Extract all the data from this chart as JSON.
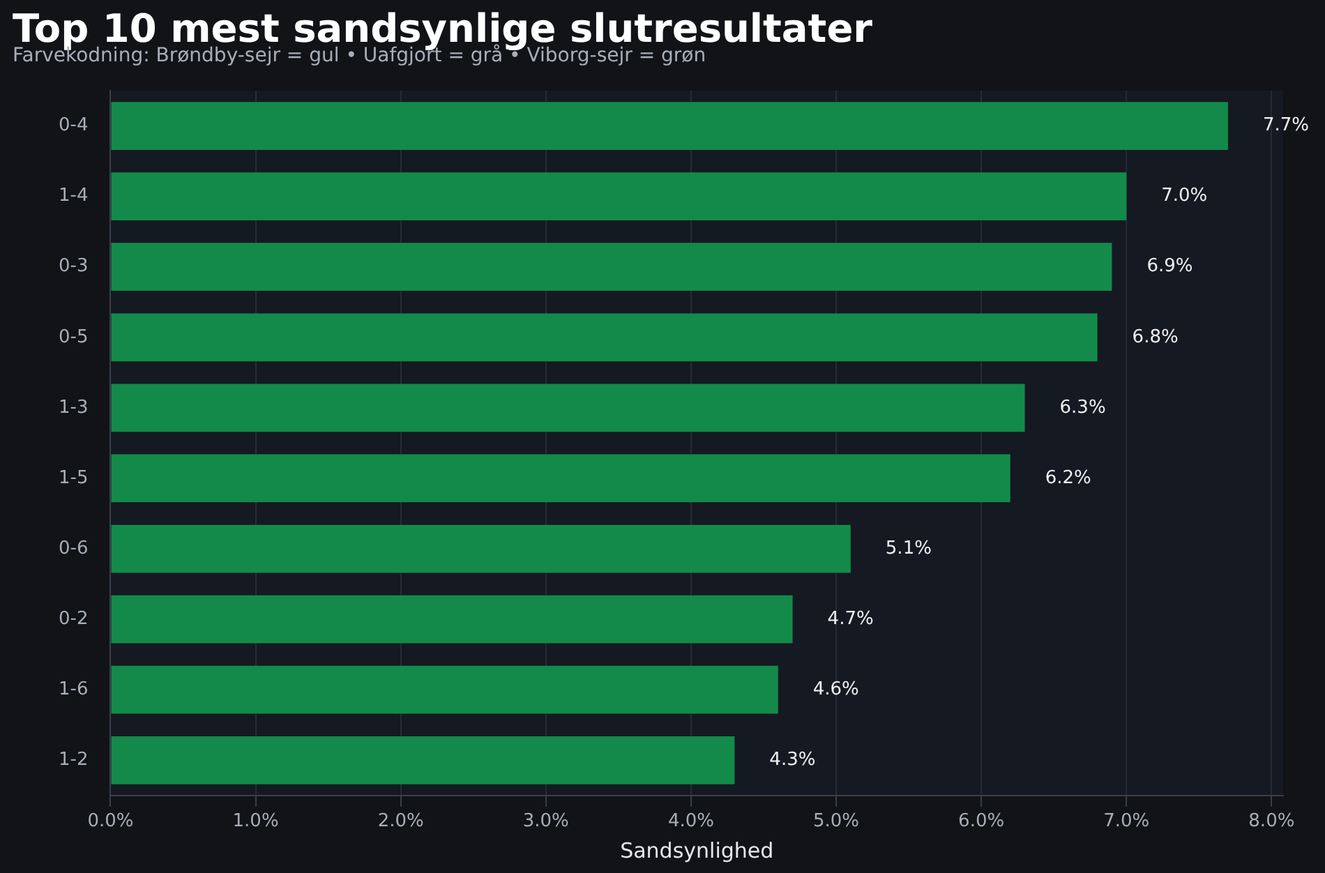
{
  "chart_data": {
    "type": "bar",
    "orientation": "horizontal",
    "title": "Top 10 mest sandsynlige slutresultater",
    "subtitle": "Farvekodning: Brøndby-sejr = gul • Uafgjort = grå • Viborg-sejr = grøn",
    "xlabel": "Sandsynlighed",
    "categories": [
      "0-4",
      "1-4",
      "0-3",
      "0-5",
      "1-3",
      "1-5",
      "0-6",
      "0-2",
      "1-6",
      "1-2"
    ],
    "values": [
      7.7,
      7.0,
      6.9,
      6.8,
      6.3,
      6.2,
      5.1,
      4.7,
      4.6,
      4.3
    ],
    "color": "#138a4a",
    "value_labels": [
      "7.7%",
      "7.0%",
      "6.9%",
      "6.8%",
      "6.3%",
      "6.2%",
      "5.1%",
      "4.7%",
      "4.6%",
      "4.3%"
    ],
    "xlim": [
      0,
      8.08
    ],
    "xticks": [
      {
        "value": 0,
        "label": "0.0%"
      },
      {
        "value": 1,
        "label": "1.0%"
      },
      {
        "value": 2,
        "label": "2.0%"
      },
      {
        "value": 3,
        "label": "3.0%"
      },
      {
        "value": 4,
        "label": "4.0%"
      },
      {
        "value": 5,
        "label": "5.0%"
      },
      {
        "value": 6,
        "label": "6.0%"
      },
      {
        "value": 7,
        "label": "7.0%"
      },
      {
        "value": 8,
        "label": "8.0%"
      }
    ],
    "grid": "x",
    "legend": false
  }
}
